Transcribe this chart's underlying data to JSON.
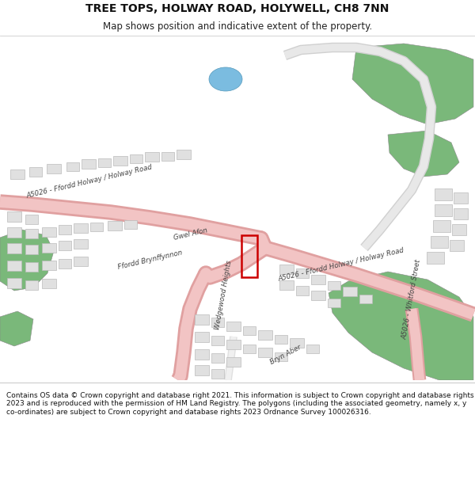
{
  "title": "TREE TOPS, HOLWAY ROAD, HOLYWELL, CH8 7NN",
  "subtitle": "Map shows position and indicative extent of the property.",
  "footer": "Contains OS data © Crown copyright and database right 2021. This information is subject to Crown copyright and database rights 2023 and is reproduced with the permission of HM Land Registry. The polygons (including the associated geometry, namely x, y co-ordinates) are subject to Crown copyright and database rights 2023 Ordnance Survey 100026316.",
  "bg_color": "#ffffff",
  "map_bg": "#f5f5f5",
  "road_color": "#f2c4c4",
  "road_edge_color": "#e0a0a0",
  "building_fill": "#e0e0e0",
  "building_edge": "#bbbbbb",
  "green_color": "#7ab87a",
  "green_dark": "#5a9e5a",
  "water_color": "#7bbce0",
  "plot_color": "#cc0000",
  "text_color": "#333333",
  "road_label_color": "#444444",
  "title_fontsize": 10,
  "subtitle_fontsize": 8.5,
  "footer_fontsize": 6.5,
  "label_fontsize": 6.2
}
